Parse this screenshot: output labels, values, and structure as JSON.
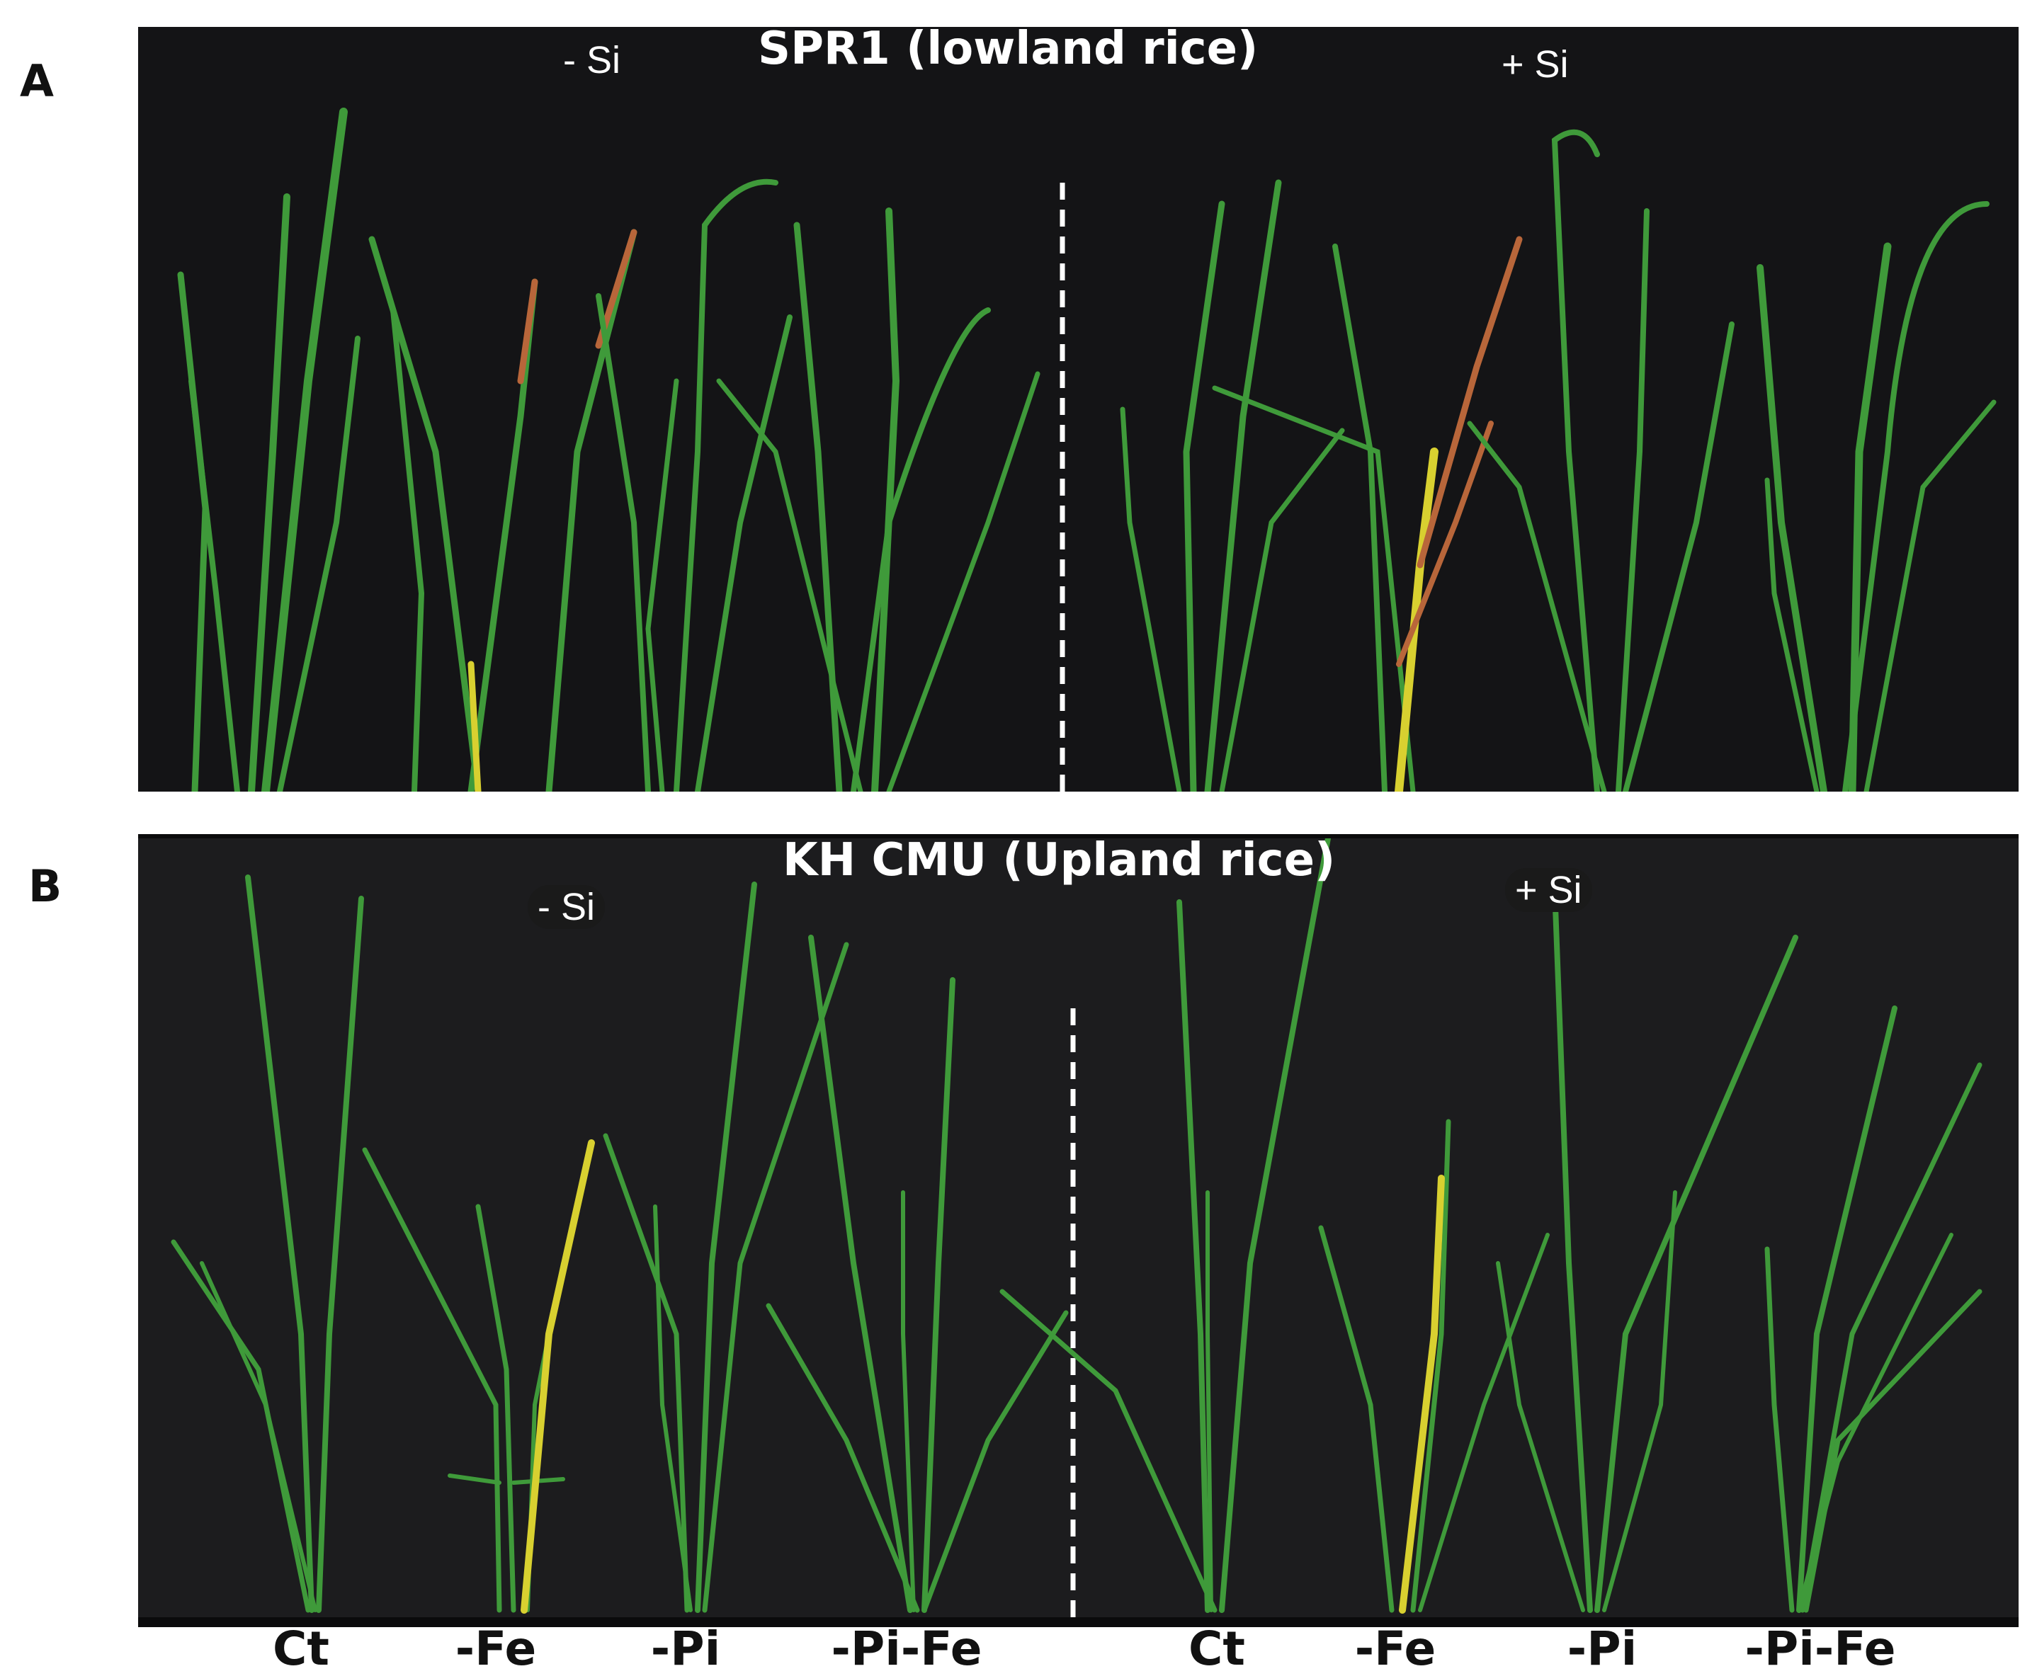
{
  "panel_a": {
    "letter": "A",
    "title": "SPR1 (lowland rice)",
    "minus_si": "- Si",
    "plus_si": "+ Si"
  },
  "panel_b": {
    "letter": "B",
    "title": "KH CMU (Upland rice)",
    "minus_si": "- Si",
    "plus_si": "+ Si"
  },
  "treatments": [
    "Ct",
    "-Fe",
    "-Pi",
    "-Pi-Fe",
    "Ct",
    "-Fe",
    "-Pi",
    "-Pi-Fe"
  ],
  "colors": {
    "background": "#141416",
    "leaf_green": "#3f9a3a",
    "leaf_yellow": "#d8d030",
    "leaf_brown": "#b8663a",
    "divider": "#ffffff"
  }
}
